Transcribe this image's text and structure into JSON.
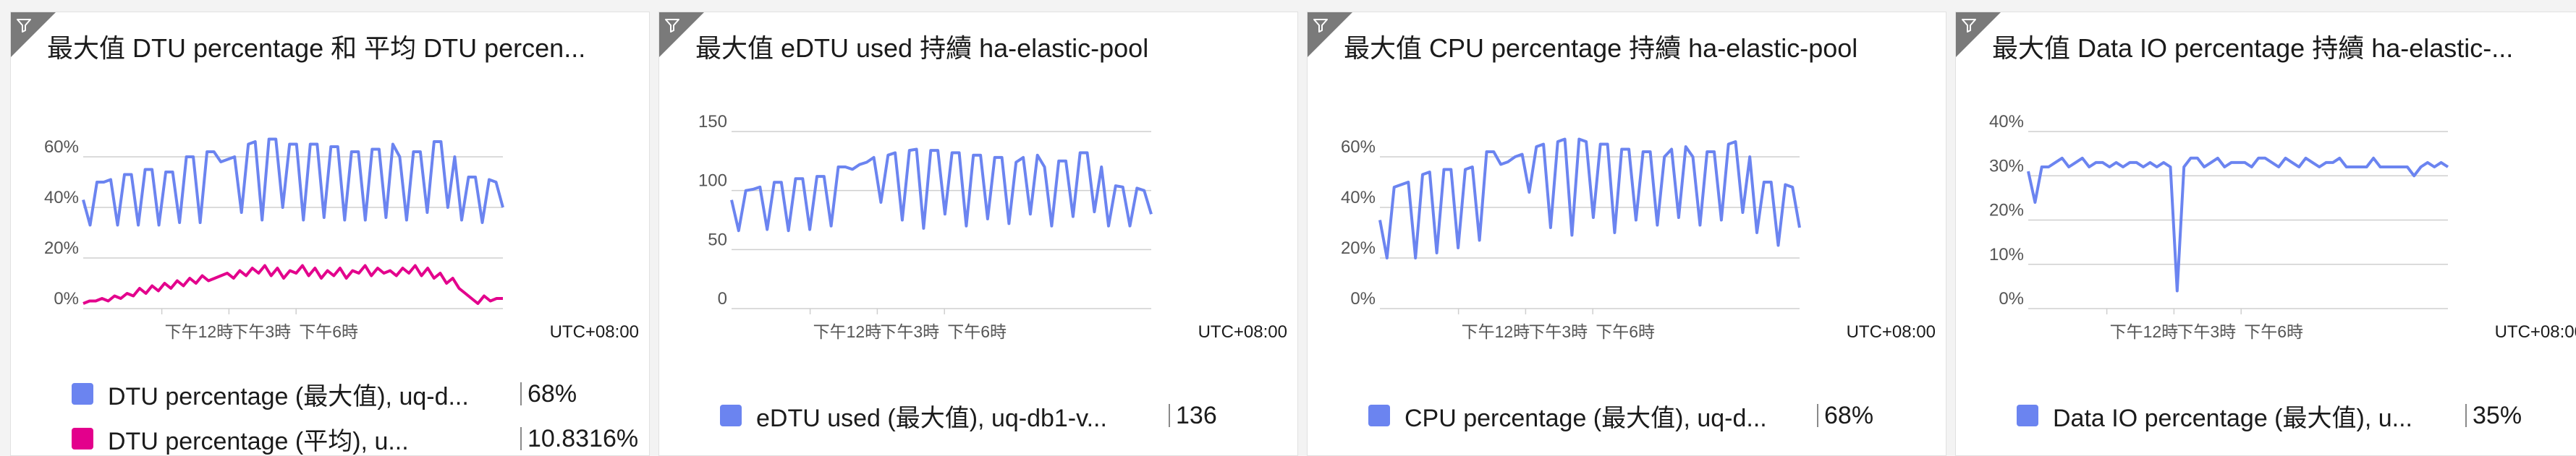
{
  "tiles": [
    {
      "title": "最大值 DTU percentage 和 平均 DTU percen...",
      "timezone": "UTC+08:00",
      "x_ticks": [
        "下午12時",
        "下午3時",
        "下午6時"
      ],
      "legend": [
        {
          "name": "DTU percentage (最大值), uq-d...",
          "value": "68%",
          "color": "#6b84f0"
        },
        {
          "name": "DTU percentage (平均), u...",
          "value": "10.8316%",
          "color": "#e3008c"
        }
      ]
    },
    {
      "title": "最大值 eDTU used 持續 ha-elastic-pool",
      "timezone": "UTC+08:00",
      "x_ticks": [
        "下午12時",
        "下午3時",
        "下午6時"
      ],
      "legend": [
        {
          "name": "eDTU used (最大值), uq-db1-v...",
          "value": "136",
          "color": "#6b84f0"
        }
      ]
    },
    {
      "title": "最大值 CPU percentage 持續 ha-elastic-pool",
      "timezone": "UTC+08:00",
      "x_ticks": [
        "下午12時",
        "下午3時",
        "下午6時"
      ],
      "legend": [
        {
          "name": "CPU percentage (最大值), uq-d...",
          "value": "68%",
          "color": "#6b84f0"
        }
      ]
    },
    {
      "title": "最大值 Data IO percentage 持續 ha-elastic-...",
      "timezone": "UTC+08:00",
      "x_ticks": [
        "下午12時",
        "下午3時",
        "下午6時"
      ],
      "legend": [
        {
          "name": "Data IO percentage (最大值), u...",
          "value": "35%",
          "color": "#6b84f0"
        }
      ]
    }
  ],
  "chart_data": [
    {
      "type": "line",
      "title": "最大值 DTU percentage 和 平均 DTU percen...",
      "y_ticks": [
        "0%",
        "20%",
        "40%",
        "60%"
      ],
      "ylim": [
        0,
        70
      ],
      "x_ticks": [
        "下午12時",
        "下午3時",
        "下午6時"
      ],
      "series": [
        {
          "name": "DTU percentage (最大值), uq-d...",
          "color": "#6b84f0",
          "values": [
            43,
            33,
            50,
            50,
            51,
            33,
            53,
            53,
            33,
            55,
            55,
            33,
            54,
            54,
            34,
            60,
            60,
            34,
            62,
            62,
            58,
            59,
            60,
            38,
            65,
            66,
            35,
            67,
            67,
            40,
            65,
            65,
            35,
            65,
            65,
            36,
            64,
            64,
            35,
            62,
            62,
            35,
            63,
            63,
            36,
            65,
            60,
            35,
            62,
            62,
            38,
            66,
            66,
            40,
            60,
            35,
            52,
            52,
            34,
            51,
            50,
            40
          ]
        },
        {
          "name": "DTU percentage (平均), u...",
          "color": "#e3008c",
          "values": [
            2,
            3,
            3,
            4,
            3,
            5,
            4,
            6,
            5,
            8,
            6,
            9,
            7,
            10,
            8,
            11,
            9,
            12,
            10,
            13,
            11,
            12,
            13,
            14,
            12,
            15,
            13,
            16,
            14,
            17,
            13,
            16,
            12,
            15,
            14,
            17,
            13,
            16,
            12,
            15,
            13,
            16,
            12,
            15,
            14,
            17,
            13,
            16,
            14,
            15,
            13,
            16,
            14,
            17,
            13,
            16,
            12,
            14,
            10,
            12,
            8,
            6,
            4,
            2,
            5,
            3,
            4,
            4
          ]
        }
      ]
    },
    {
      "type": "line",
      "title": "最大值 eDTU used 持續 ha-elastic-pool",
      "y_ticks": [
        "0",
        "50",
        "100",
        "150"
      ],
      "ylim": [
        0,
        150
      ],
      "x_ticks": [
        "下午12時",
        "下午3時",
        "下午6時"
      ],
      "series": [
        {
          "name": "eDTU used (最大值), uq-db1-v...",
          "color": "#6b84f0",
          "values": [
            92,
            66,
            100,
            101,
            103,
            67,
            107,
            107,
            66,
            110,
            110,
            67,
            112,
            112,
            70,
            120,
            120,
            118,
            122,
            124,
            128,
            90,
            130,
            132,
            75,
            134,
            135,
            68,
            134,
            134,
            80,
            132,
            132,
            70,
            130,
            130,
            76,
            128,
            128,
            72,
            124,
            128,
            80,
            130,
            120,
            70,
            125,
            125,
            78,
            132,
            132,
            82,
            120,
            70,
            104,
            103,
            70,
            102,
            100,
            80
          ]
        }
      ]
    },
    {
      "type": "line",
      "title": "最大值 CPU percentage 持續 ha-elastic-pool",
      "y_ticks": [
        "0%",
        "20%",
        "40%",
        "60%"
      ],
      "ylim": [
        0,
        70
      ],
      "x_ticks": [
        "下午12時",
        "下午3時",
        "下午6時"
      ],
      "series": [
        {
          "name": "CPU percentage (最大值), uq-d...",
          "color": "#6b84f0",
          "values": [
            35,
            20,
            48,
            49,
            50,
            20,
            53,
            54,
            22,
            55,
            55,
            24,
            55,
            56,
            27,
            62,
            62,
            57,
            58,
            60,
            61,
            46,
            64,
            65,
            32,
            66,
            67,
            29,
            67,
            66,
            36,
            65,
            65,
            30,
            63,
            63,
            35,
            62,
            62,
            33,
            60,
            63,
            36,
            64,
            60,
            33,
            62,
            62,
            35,
            65,
            66,
            38,
            60,
            30,
            50,
            50,
            25,
            49,
            48,
            32
          ]
        }
      ]
    },
    {
      "type": "line",
      "title": "最大值 Data IO percentage 持續 ha-elastic-...",
      "y_ticks": [
        "0%",
        "10%",
        "20%",
        "30%",
        "40%"
      ],
      "ylim": [
        0,
        40
      ],
      "x_ticks": [
        "下午12時",
        "下午3時",
        "下午6時"
      ],
      "series": [
        {
          "name": "Data IO percentage (最大值), u...",
          "color": "#6b84f0",
          "values": [
            31,
            24,
            32,
            32,
            33,
            34,
            32,
            33,
            34,
            32,
            33,
            33,
            32,
            33,
            32,
            33,
            33,
            32,
            33,
            32,
            33,
            32,
            4,
            32,
            34,
            34,
            32,
            33,
            34,
            32,
            33,
            33,
            33,
            32,
            34,
            34,
            33,
            32,
            34,
            33,
            32,
            34,
            33,
            32,
            33,
            33,
            34,
            32,
            32,
            32,
            32,
            34,
            32,
            32,
            32,
            32,
            32,
            30,
            32,
            33,
            32,
            33,
            32
          ]
        }
      ]
    }
  ]
}
